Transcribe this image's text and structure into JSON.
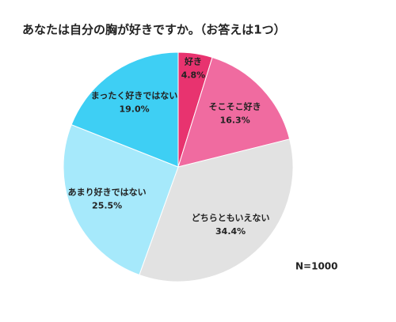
{
  "chart_data": {
    "type": "pie",
    "title": "あなたは自分の胸が好きですか。（お答えは1つ）",
    "categories": [
      "好き",
      "そこそこ好き",
      "どちらともいえない",
      "あまり好きではない",
      "まったく好きではない"
    ],
    "values": [
      4.8,
      16.3,
      34.4,
      25.5,
      19.0
    ],
    "value_labels": [
      "4.8%",
      "16.3%",
      "34.4%",
      "25.5%",
      "19.0%"
    ],
    "colors": [
      "#e8336f",
      "#f06ba0",
      "#e2e2e2",
      "#a6e9fb",
      "#3ecff4"
    ],
    "annotation": "N=1000"
  }
}
